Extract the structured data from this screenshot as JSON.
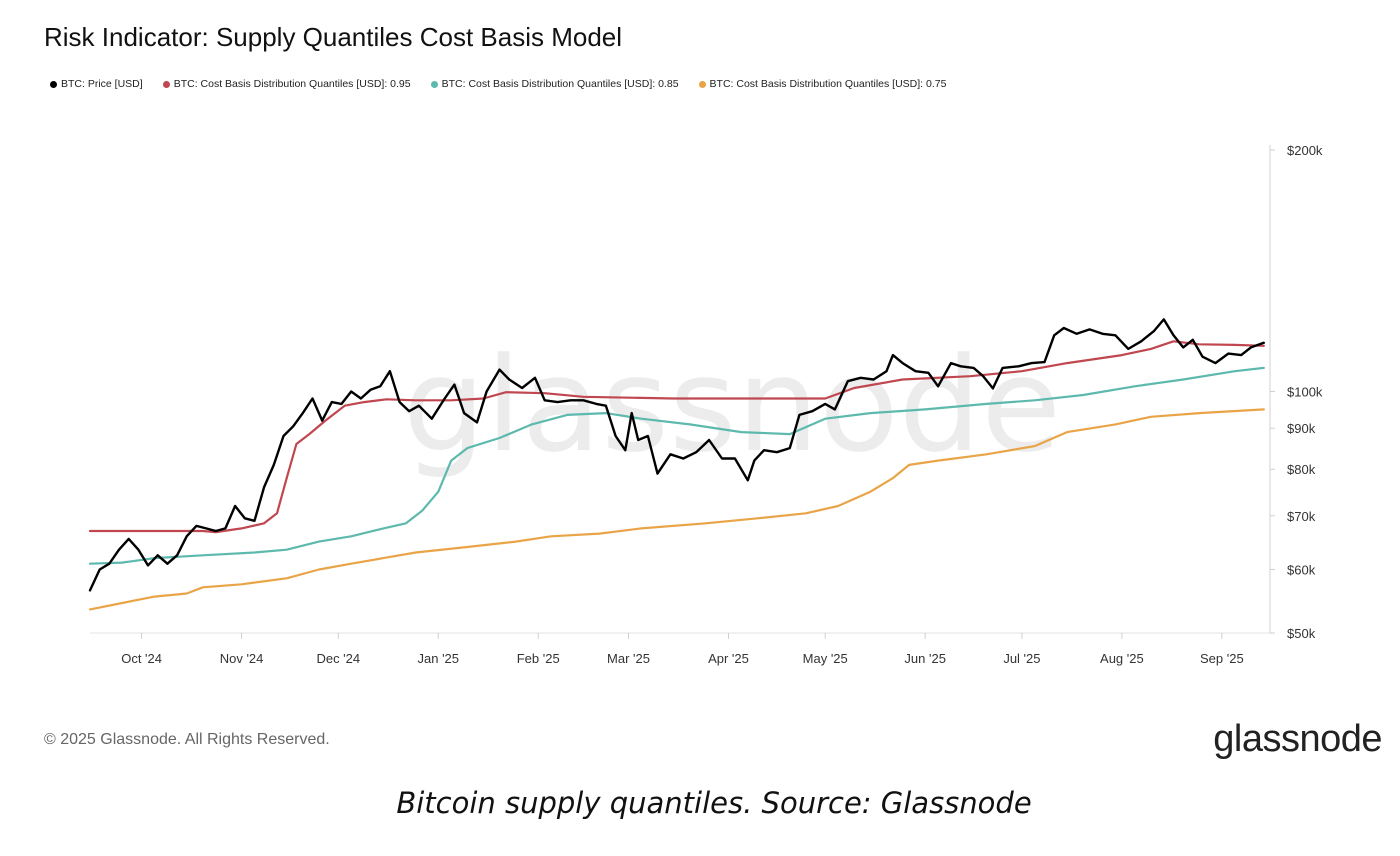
{
  "title": "Risk Indicator: Supply Quantiles Cost Basis Model",
  "legend": [
    {
      "label": "BTC: Price [USD]",
      "color": "#000000"
    },
    {
      "label": "BTC: Cost Basis Distribution Quantiles [USD]: 0.95",
      "color": "#c0474f"
    },
    {
      "label": "BTC: Cost Basis Distribution Quantiles [USD]: 0.85",
      "color": "#5db9ad"
    },
    {
      "label": "BTC: Cost Basis Distribution Quantiles [USD]: 0.75",
      "color": "#e9a447"
    }
  ],
  "watermark": "glassnode",
  "footer": {
    "copyright": "© 2025 Glassnode. All Rights Reserved.",
    "logo": "glassnode"
  },
  "caption": "Bitcoin supply quantiles. Source: Glassnode",
  "chart_data": {
    "type": "line",
    "x_scale": "time",
    "y_scale": "log",
    "ylim": [
      50000,
      200000
    ],
    "xlim": [
      "2024-09-15",
      "2025-09-15"
    ],
    "x_ticks": [
      {
        "date": "2024-10-01",
        "label": "Oct '24"
      },
      {
        "date": "2024-11-01",
        "label": "Nov '24"
      },
      {
        "date": "2024-12-01",
        "label": "Dec '24"
      },
      {
        "date": "2025-01-01",
        "label": "Jan '25"
      },
      {
        "date": "2025-02-01",
        "label": "Feb '25"
      },
      {
        "date": "2025-03-01",
        "label": "Mar '25"
      },
      {
        "date": "2025-04-01",
        "label": "Apr '25"
      },
      {
        "date": "2025-05-01",
        "label": "May '25"
      },
      {
        "date": "2025-06-01",
        "label": "Jun '25"
      },
      {
        "date": "2025-07-01",
        "label": "Jul '25"
      },
      {
        "date": "2025-08-01",
        "label": "Aug '25"
      },
      {
        "date": "2025-09-01",
        "label": "Sep '25"
      }
    ],
    "y_ticks": [
      {
        "value": 200000,
        "label": "$200k"
      },
      {
        "value": 100000,
        "label": "$100k"
      },
      {
        "value": 90000,
        "label": "$90k"
      },
      {
        "value": 80000,
        "label": "$80k"
      },
      {
        "value": 70000,
        "label": "$70k"
      },
      {
        "value": 60000,
        "label": "$60k"
      },
      {
        "value": 50000,
        "label": "$50k"
      }
    ],
    "series": [
      {
        "name": "BTC: Price [USD]",
        "color": "#000000",
        "points": [
          [
            "2024-09-15",
            56500
          ],
          [
            "2024-09-18",
            60000
          ],
          [
            "2024-09-21",
            61000
          ],
          [
            "2024-09-24",
            63500
          ],
          [
            "2024-09-27",
            65500
          ],
          [
            "2024-09-30",
            63500
          ],
          [
            "2024-10-03",
            60700
          ],
          [
            "2024-10-06",
            62500
          ],
          [
            "2024-10-09",
            61000
          ],
          [
            "2024-10-12",
            62500
          ],
          [
            "2024-10-15",
            66000
          ],
          [
            "2024-10-18",
            68000
          ],
          [
            "2024-10-21",
            67500
          ],
          [
            "2024-10-24",
            67000
          ],
          [
            "2024-10-27",
            67500
          ],
          [
            "2024-10-30",
            72000
          ],
          [
            "2024-11-02",
            69500
          ],
          [
            "2024-11-05",
            69000
          ],
          [
            "2024-11-08",
            76000
          ],
          [
            "2024-11-11",
            81000
          ],
          [
            "2024-11-14",
            88000
          ],
          [
            "2024-11-17",
            90500
          ],
          [
            "2024-11-20",
            94000
          ],
          [
            "2024-11-23",
            98000
          ],
          [
            "2024-11-26",
            92000
          ],
          [
            "2024-11-29",
            97000
          ],
          [
            "2024-12-02",
            96500
          ],
          [
            "2024-12-05",
            100000
          ],
          [
            "2024-12-08",
            98000
          ],
          [
            "2024-12-11",
            100500
          ],
          [
            "2024-12-14",
            101500
          ],
          [
            "2024-12-17",
            106000
          ],
          [
            "2024-12-20",
            97000
          ],
          [
            "2024-12-23",
            94500
          ],
          [
            "2024-12-26",
            96000
          ],
          [
            "2024-12-30",
            92500
          ],
          [
            "2025-01-03",
            98000
          ],
          [
            "2025-01-06",
            102000
          ],
          [
            "2025-01-09",
            94000
          ],
          [
            "2025-01-13",
            91500
          ],
          [
            "2025-01-16",
            100000
          ],
          [
            "2025-01-20",
            106500
          ],
          [
            "2025-01-23",
            103500
          ],
          [
            "2025-01-27",
            101000
          ],
          [
            "2025-01-31",
            104000
          ],
          [
            "2025-02-03",
            97500
          ],
          [
            "2025-02-07",
            97000
          ],
          [
            "2025-02-11",
            97500
          ],
          [
            "2025-02-15",
            97500
          ],
          [
            "2025-02-19",
            96500
          ],
          [
            "2025-02-22",
            96000
          ],
          [
            "2025-02-25",
            88000
          ],
          [
            "2025-02-28",
            84500
          ],
          [
            "2025-03-02",
            94000
          ],
          [
            "2025-03-04",
            87000
          ],
          [
            "2025-03-07",
            88000
          ],
          [
            "2025-03-10",
            79000
          ],
          [
            "2025-03-14",
            83500
          ],
          [
            "2025-03-18",
            82500
          ],
          [
            "2025-03-22",
            84000
          ],
          [
            "2025-03-26",
            87000
          ],
          [
            "2025-03-30",
            82500
          ],
          [
            "2025-04-03",
            82500
          ],
          [
            "2025-04-07",
            77500
          ],
          [
            "2025-04-09",
            82000
          ],
          [
            "2025-04-12",
            84500
          ],
          [
            "2025-04-16",
            84000
          ],
          [
            "2025-04-20",
            85000
          ],
          [
            "2025-04-23",
            93500
          ],
          [
            "2025-04-27",
            94500
          ],
          [
            "2025-05-01",
            96500
          ],
          [
            "2025-05-04",
            95000
          ],
          [
            "2025-05-08",
            103000
          ],
          [
            "2025-05-12",
            104000
          ],
          [
            "2025-05-16",
            103500
          ],
          [
            "2025-05-20",
            106000
          ],
          [
            "2025-05-22",
            111000
          ],
          [
            "2025-05-25",
            108500
          ],
          [
            "2025-05-29",
            106000
          ],
          [
            "2025-06-02",
            105500
          ],
          [
            "2025-06-05",
            101500
          ],
          [
            "2025-06-09",
            108500
          ],
          [
            "2025-06-12",
            107500
          ],
          [
            "2025-06-16",
            107000
          ],
          [
            "2025-06-19",
            104500
          ],
          [
            "2025-06-22",
            100900
          ],
          [
            "2025-06-25",
            107000
          ],
          [
            "2025-06-30",
            107500
          ],
          [
            "2025-07-04",
            108500
          ],
          [
            "2025-07-08",
            108800
          ],
          [
            "2025-07-11",
            117500
          ],
          [
            "2025-07-14",
            120000
          ],
          [
            "2025-07-18",
            118000
          ],
          [
            "2025-07-22",
            119500
          ],
          [
            "2025-07-26",
            118000
          ],
          [
            "2025-07-30",
            117500
          ],
          [
            "2025-08-03",
            113000
          ],
          [
            "2025-08-07",
            115500
          ],
          [
            "2025-08-11",
            119000
          ],
          [
            "2025-08-14",
            123000
          ],
          [
            "2025-08-17",
            117500
          ],
          [
            "2025-08-20",
            113500
          ],
          [
            "2025-08-23",
            116000
          ],
          [
            "2025-08-26",
            110500
          ],
          [
            "2025-08-30",
            108500
          ],
          [
            "2025-09-03",
            111500
          ],
          [
            "2025-09-07",
            111000
          ],
          [
            "2025-09-10",
            113500
          ],
          [
            "2025-09-14",
            115000
          ]
        ]
      },
      {
        "name": "BTC: Cost Basis Distribution Quantiles [USD]: 0.95",
        "color": "#c0474f",
        "points": [
          [
            "2024-09-15",
            67000
          ],
          [
            "2024-10-20",
            67000
          ],
          [
            "2024-10-24",
            66800
          ],
          [
            "2024-11-01",
            67500
          ],
          [
            "2024-11-08",
            68500
          ],
          [
            "2024-11-12",
            70500
          ],
          [
            "2024-11-15",
            78000
          ],
          [
            "2024-11-18",
            86000
          ],
          [
            "2024-11-22",
            88500
          ],
          [
            "2024-11-27",
            92000
          ],
          [
            "2024-12-03",
            96000
          ],
          [
            "2024-12-09",
            97000
          ],
          [
            "2024-12-16",
            97800
          ],
          [
            "2024-12-25",
            97500
          ],
          [
            "2025-01-05",
            97500
          ],
          [
            "2025-01-15",
            98000
          ],
          [
            "2025-01-22",
            99800
          ],
          [
            "2025-02-03",
            99500
          ],
          [
            "2025-02-15",
            98500
          ],
          [
            "2025-03-15",
            98000
          ],
          [
            "2025-04-15",
            98000
          ],
          [
            "2025-05-01",
            98000
          ],
          [
            "2025-05-10",
            101000
          ],
          [
            "2025-05-25",
            103500
          ],
          [
            "2025-06-15",
            104500
          ],
          [
            "2025-07-01",
            106000
          ],
          [
            "2025-07-15",
            108500
          ],
          [
            "2025-08-01",
            111000
          ],
          [
            "2025-08-10",
            113000
          ],
          [
            "2025-08-17",
            115500
          ],
          [
            "2025-08-25",
            114500
          ],
          [
            "2025-09-05",
            114300
          ],
          [
            "2025-09-14",
            114000
          ]
        ]
      },
      {
        "name": "BTC: Cost Basis Distribution Quantiles [USD]: 0.85",
        "color": "#5db9ad",
        "points": [
          [
            "2024-09-15",
            61000
          ],
          [
            "2024-09-25",
            61200
          ],
          [
            "2024-10-05",
            62000
          ],
          [
            "2024-10-20",
            62500
          ],
          [
            "2024-11-05",
            63000
          ],
          [
            "2024-11-15",
            63500
          ],
          [
            "2024-11-25",
            65000
          ],
          [
            "2024-12-05",
            66000
          ],
          [
            "2024-12-15",
            67500
          ],
          [
            "2024-12-22",
            68500
          ],
          [
            "2024-12-27",
            71000
          ],
          [
            "2025-01-01",
            75000
          ],
          [
            "2025-01-05",
            82000
          ],
          [
            "2025-01-10",
            85000
          ],
          [
            "2025-01-20",
            87500
          ],
          [
            "2025-01-30",
            91000
          ],
          [
            "2025-02-10",
            93500
          ],
          [
            "2025-02-22",
            94000
          ],
          [
            "2025-03-05",
            92500
          ],
          [
            "2025-03-20",
            91000
          ],
          [
            "2025-04-05",
            89000
          ],
          [
            "2025-04-20",
            88500
          ],
          [
            "2025-05-01",
            92500
          ],
          [
            "2025-05-15",
            94000
          ],
          [
            "2025-06-01",
            95000
          ],
          [
            "2025-06-20",
            96500
          ],
          [
            "2025-07-05",
            97500
          ],
          [
            "2025-07-20",
            99000
          ],
          [
            "2025-08-05",
            101500
          ],
          [
            "2025-08-20",
            103500
          ],
          [
            "2025-09-05",
            106000
          ],
          [
            "2025-09-14",
            107000
          ]
        ]
      },
      {
        "name": "BTC: Cost Basis Distribution Quantiles [USD]: 0.75",
        "color": "#e9a447",
        "points": [
          [
            "2024-09-15",
            53500
          ],
          [
            "2024-09-25",
            54500
          ],
          [
            "2024-10-05",
            55500
          ],
          [
            "2024-10-15",
            56000
          ],
          [
            "2024-10-20",
            57000
          ],
          [
            "2024-11-01",
            57500
          ],
          [
            "2024-11-15",
            58500
          ],
          [
            "2024-11-25",
            60000
          ],
          [
            "2024-12-05",
            61000
          ],
          [
            "2024-12-15",
            62000
          ],
          [
            "2024-12-25",
            63000
          ],
          [
            "2025-01-10",
            64000
          ],
          [
            "2025-01-25",
            65000
          ],
          [
            "2025-02-05",
            66000
          ],
          [
            "2025-02-20",
            66500
          ],
          [
            "2025-03-05",
            67500
          ],
          [
            "2025-03-25",
            68500
          ],
          [
            "2025-04-10",
            69500
          ],
          [
            "2025-04-25",
            70500
          ],
          [
            "2025-05-05",
            72000
          ],
          [
            "2025-05-15",
            75000
          ],
          [
            "2025-05-22",
            78000
          ],
          [
            "2025-05-27",
            81000
          ],
          [
            "2025-06-05",
            82000
          ],
          [
            "2025-06-20",
            83500
          ],
          [
            "2025-07-05",
            85500
          ],
          [
            "2025-07-15",
            89000
          ],
          [
            "2025-07-30",
            91000
          ],
          [
            "2025-08-10",
            93000
          ],
          [
            "2025-08-25",
            94000
          ],
          [
            "2025-09-14",
            95000
          ]
        ]
      }
    ]
  }
}
